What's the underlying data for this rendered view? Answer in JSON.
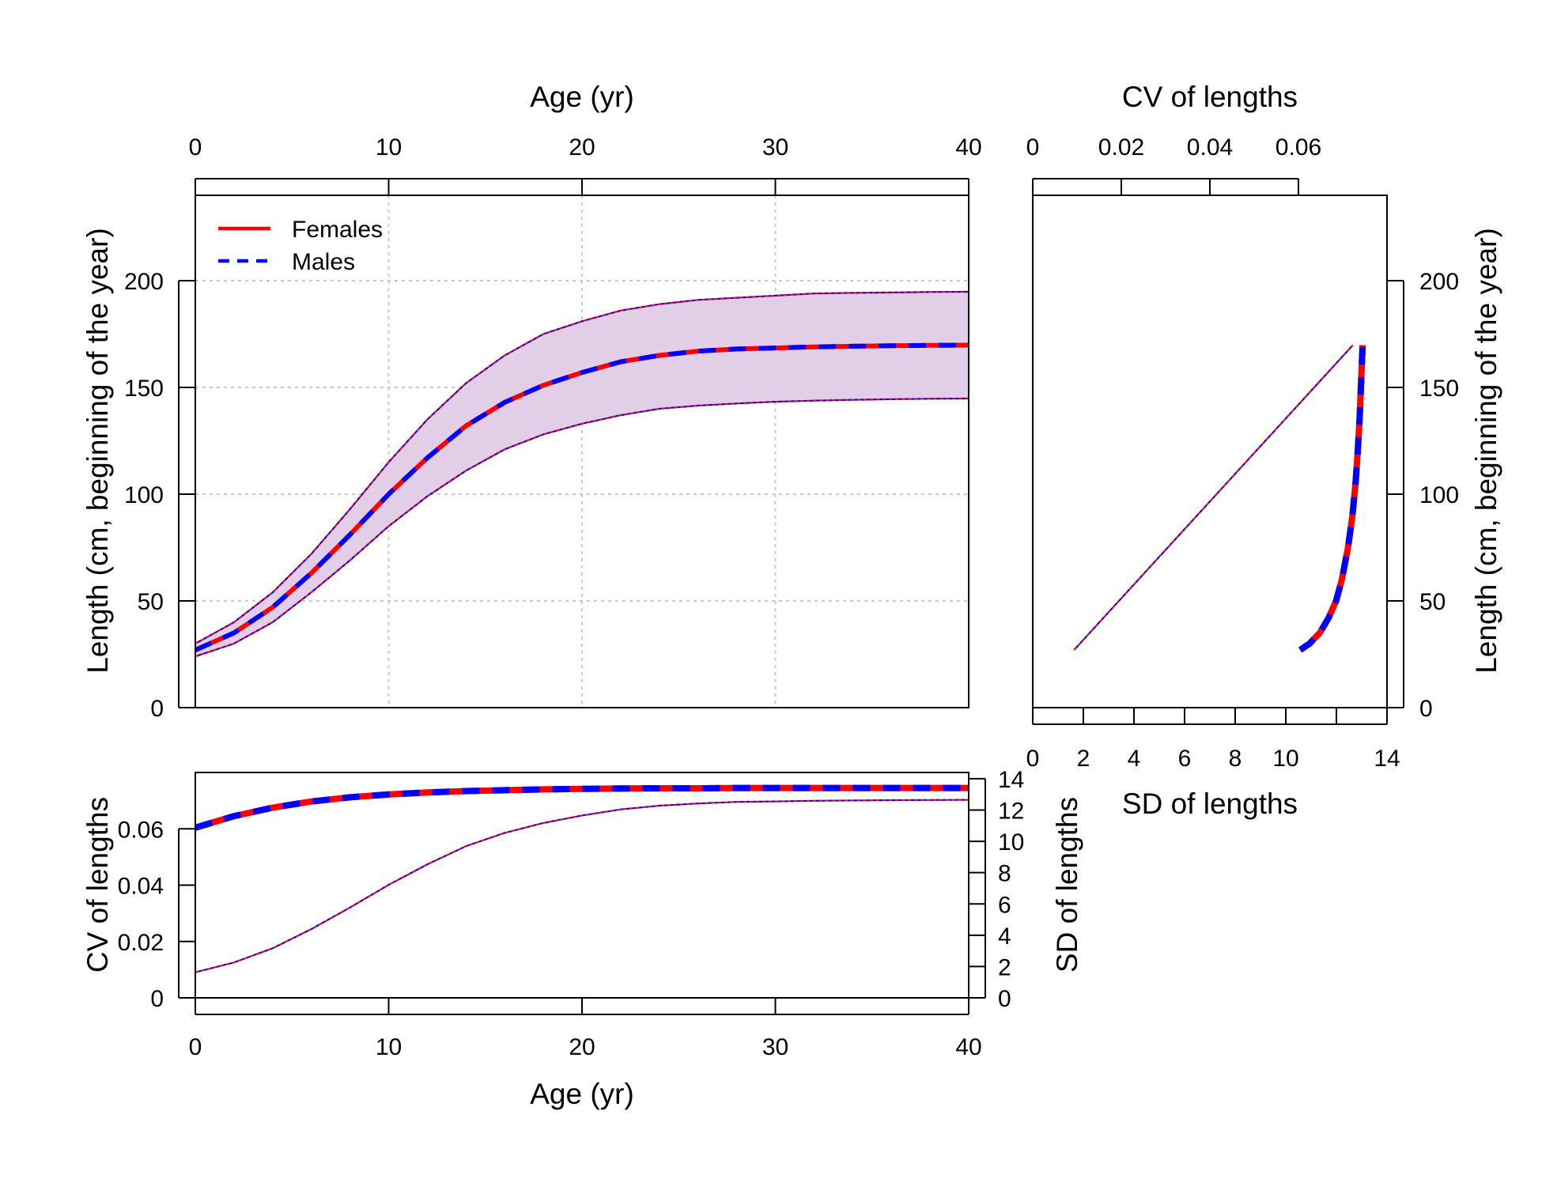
{
  "chart_data": [
    {
      "type": "line",
      "panel": "growth-curve",
      "xlabel": "Age (yr)",
      "x_axis_top_label": "Age (yr)",
      "ylabel": "Length (cm, beginning of the year)",
      "xlim": [
        0,
        40
      ],
      "ylim": [
        0,
        240
      ],
      "x_ticks": [
        "0",
        "10",
        "20",
        "30",
        "40"
      ],
      "y_ticks": [
        "0",
        "50",
        "100",
        "150",
        "200"
      ],
      "grid": true,
      "legend": {
        "placement": "top-left",
        "entries": [
          "Females",
          "Males"
        ]
      },
      "x": [
        0,
        2,
        4,
        6,
        8,
        10,
        12,
        14,
        16,
        18,
        20,
        22,
        24,
        26,
        28,
        30,
        32,
        34,
        36,
        38,
        40
      ],
      "series": [
        {
          "name": "Females",
          "values": [
            27,
            35,
            47,
            63,
            81,
            100,
            117,
            132,
            143,
            151,
            157,
            162,
            165,
            167,
            168,
            168.5,
            169,
            169.3,
            169.5,
            169.7,
            169.8
          ]
        },
        {
          "name": "Males",
          "values": [
            27,
            35,
            47,
            63,
            81,
            100,
            117,
            132,
            143,
            151,
            157,
            162,
            165,
            167,
            168,
            168.5,
            169,
            169.3,
            169.5,
            169.7,
            169.8
          ]
        }
      ],
      "interval_upper": [
        30,
        40,
        54,
        72,
        93,
        115,
        135,
        152,
        165,
        175,
        181,
        186,
        189,
        191,
        192,
        193,
        194,
        194.3,
        194.5,
        194.7,
        194.8
      ],
      "interval_lower": [
        24,
        30,
        40,
        54,
        69,
        85,
        99,
        111,
        121,
        128,
        133,
        137,
        140,
        141.5,
        142.5,
        143.3,
        143.8,
        144.2,
        144.5,
        144.7,
        144.8
      ]
    },
    {
      "type": "line",
      "panel": "length-vs-variability",
      "xlabel": "SD of lengths",
      "x_axis_top_label": "CV of lengths",
      "ylabel": "Length (cm, beginning of the year)",
      "sd_lim": [
        0,
        14
      ],
      "cv_lim": [
        0,
        0.08
      ],
      "ylim": [
        0,
        240
      ],
      "sd_ticks": [
        "0",
        "2",
        "4",
        "6",
        "8",
        "10",
        "14"
      ],
      "cv_ticks": [
        "0",
        "0.02",
        "0.04",
        "0.06"
      ],
      "y_ticks": [
        "0",
        "50",
        "100",
        "150",
        "200"
      ],
      "cv_series": {
        "lengths": [
          27,
          30,
          35,
          42,
          50,
          60,
          75,
          90,
          105,
          120,
          135,
          150,
          160,
          165,
          169.8
        ],
        "cv": [
          0.0604,
          0.0625,
          0.0648,
          0.0668,
          0.0685,
          0.0698,
          0.0712,
          0.0722,
          0.0729,
          0.0734,
          0.0738,
          0.0741,
          0.0743,
          0.0744,
          0.0745
        ]
      },
      "sd_series": {
        "lengths": [
          27,
          169.8
        ],
        "sd": [
          1.63,
          12.65
        ]
      }
    },
    {
      "type": "line",
      "panel": "variability-by-age",
      "xlabel": "Age (yr)",
      "ylabel": "CV of lengths",
      "y2label": "SD of lengths",
      "xlim": [
        0,
        40
      ],
      "ylim": [
        0,
        0.08
      ],
      "y2lim": [
        0,
        14.4
      ],
      "x_ticks": [
        "0",
        "10",
        "20",
        "30",
        "40"
      ],
      "y_ticks": [
        "0",
        "0.02",
        "0.04",
        "0.06"
      ],
      "y2_ticks": [
        "0",
        "2",
        "4",
        "6",
        "8",
        "10",
        "12",
        "14"
      ],
      "x": [
        0,
        2,
        4,
        6,
        8,
        10,
        12,
        14,
        16,
        18,
        20,
        22,
        24,
        26,
        28,
        30,
        32,
        34,
        36,
        38,
        40
      ],
      "cv_values": [
        0.0604,
        0.0645,
        0.0675,
        0.0697,
        0.0712,
        0.0722,
        0.0729,
        0.0734,
        0.0737,
        0.074,
        0.0742,
        0.0743,
        0.0744,
        0.0744,
        0.0745,
        0.0745,
        0.0745,
        0.0745,
        0.0745,
        0.0745,
        0.0745
      ],
      "sd_values": [
        1.63,
        2.26,
        3.17,
        4.39,
        5.77,
        7.22,
        8.53,
        9.69,
        10.54,
        11.17,
        11.65,
        12.04,
        12.28,
        12.42,
        12.52,
        12.55,
        12.59,
        12.61,
        12.63,
        12.64,
        12.65
      ]
    }
  ],
  "colors": {
    "females": "#ff0000",
    "males": "#0000ff",
    "interval_fill": "#e2cfe7",
    "grid": "#c8c8c8",
    "axis": "#000000"
  }
}
